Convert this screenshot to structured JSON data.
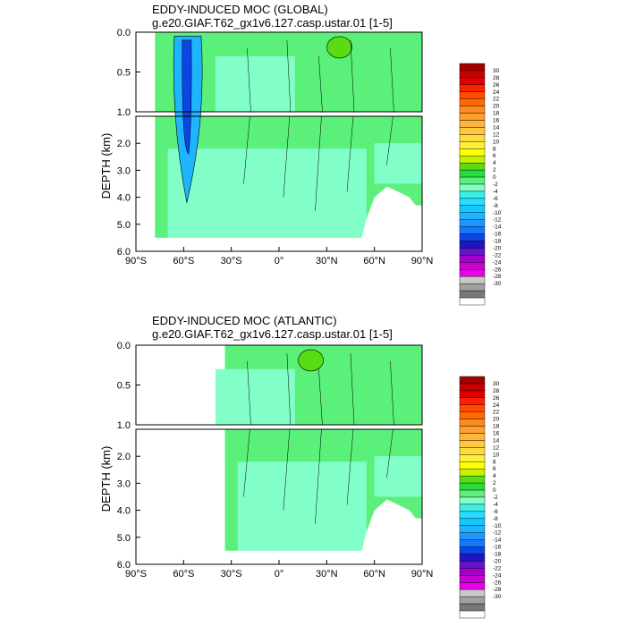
{
  "chart_data": [
    {
      "type": "heatmap",
      "title": "EDDY-INDUCED MOC (GLOBAL)",
      "subtitle": "g.e20.GIAF.T62_gx1v6.127.casp.ustar.01 [1-5]",
      "xlabel": "",
      "ylabel": "DEPTH (km)",
      "xlim": [
        -90,
        90
      ],
      "ylim_upper_km": [
        0.0,
        1.0
      ],
      "ylim_lower_km": [
        1.0,
        6.0
      ],
      "x_ticks": [
        "90°S",
        "60°S",
        "30°S",
        "0°",
        "30°N",
        "60°N",
        "90°N"
      ],
      "y_ticks_upper": [
        "0.0",
        "0.5",
        "1.0"
      ],
      "y_ticks_lower": [
        "2.0",
        "3.0",
        "4.0",
        "5.0",
        "6.0"
      ],
      "data_extent_lat": [
        -78,
        90
      ],
      "features": [
        {
          "name": "southern ocean cell",
          "lat": -58,
          "depth_km": 1.2,
          "value": -16
        },
        {
          "name": "northern surface cell",
          "lat": 38,
          "depth_km": 0.1,
          "value": 4
        }
      ]
    },
    {
      "type": "heatmap",
      "title": "EDDY-INDUCED MOC (ATLANTIC)",
      "subtitle": "g.e20.GIAF.T62_gx1v6.127.casp.ustar.01 [1-5]",
      "xlabel": "",
      "ylabel": "DEPTH (km)",
      "xlim": [
        -90,
        90
      ],
      "ylim_upper_km": [
        0.0,
        1.0
      ],
      "ylim_lower_km": [
        1.0,
        6.0
      ],
      "x_ticks": [
        "90°S",
        "60°S",
        "30°S",
        "0°",
        "30°N",
        "60°N",
        "90°N"
      ],
      "y_ticks_upper": [
        "0.0",
        "0.5",
        "1.0"
      ],
      "y_ticks_lower": [
        "2.0",
        "3.0",
        "4.0",
        "5.0",
        "6.0"
      ],
      "data_extent_lat": [
        -34,
        90
      ],
      "features": [
        {
          "name": "weak positive cell",
          "lat": 20,
          "depth_km": 0.1,
          "value": 2
        }
      ]
    }
  ],
  "colorbar": {
    "labels": [
      "30",
      "28",
      "26",
      "24",
      "22",
      "20",
      "18",
      "16",
      "14",
      "12",
      "10",
      "8",
      "6",
      "4",
      "2",
      "0",
      "-2",
      "-4",
      "-6",
      "-8",
      "-10",
      "-12",
      "-14",
      "-16",
      "-18",
      "-20",
      "-22",
      "-24",
      "-26",
      "-28",
      "-30"
    ],
    "colors": [
      "#a50000",
      "#c80000",
      "#e10000",
      "#ff2000",
      "#ff4a00",
      "#ff6a00",
      "#ff8a1e",
      "#ffa030",
      "#ffb43c",
      "#ffc83c",
      "#ffdc3c",
      "#fff03c",
      "#ffff00",
      "#c8f000",
      "#5adc14",
      "#28dc3c",
      "#5af07a",
      "#82ffc8",
      "#3cf0e6",
      "#28dcff",
      "#14c8ff",
      "#1eb4ff",
      "#1e96ff",
      "#1478ff",
      "#0a46e6",
      "#1e14c8",
      "#6414c8",
      "#a000c8",
      "#c800d2",
      "#e600e6",
      "#c8c8c8",
      "#a0a0a0",
      "#787878",
      "#ffffff"
    ]
  },
  "colors": {
    "land": "#ffffff",
    "background_fill": "#5af07a",
    "deep_fill": "#82ffc8",
    "cell_fill": "#1eb4ff",
    "cell_core": "#0a46e6"
  }
}
